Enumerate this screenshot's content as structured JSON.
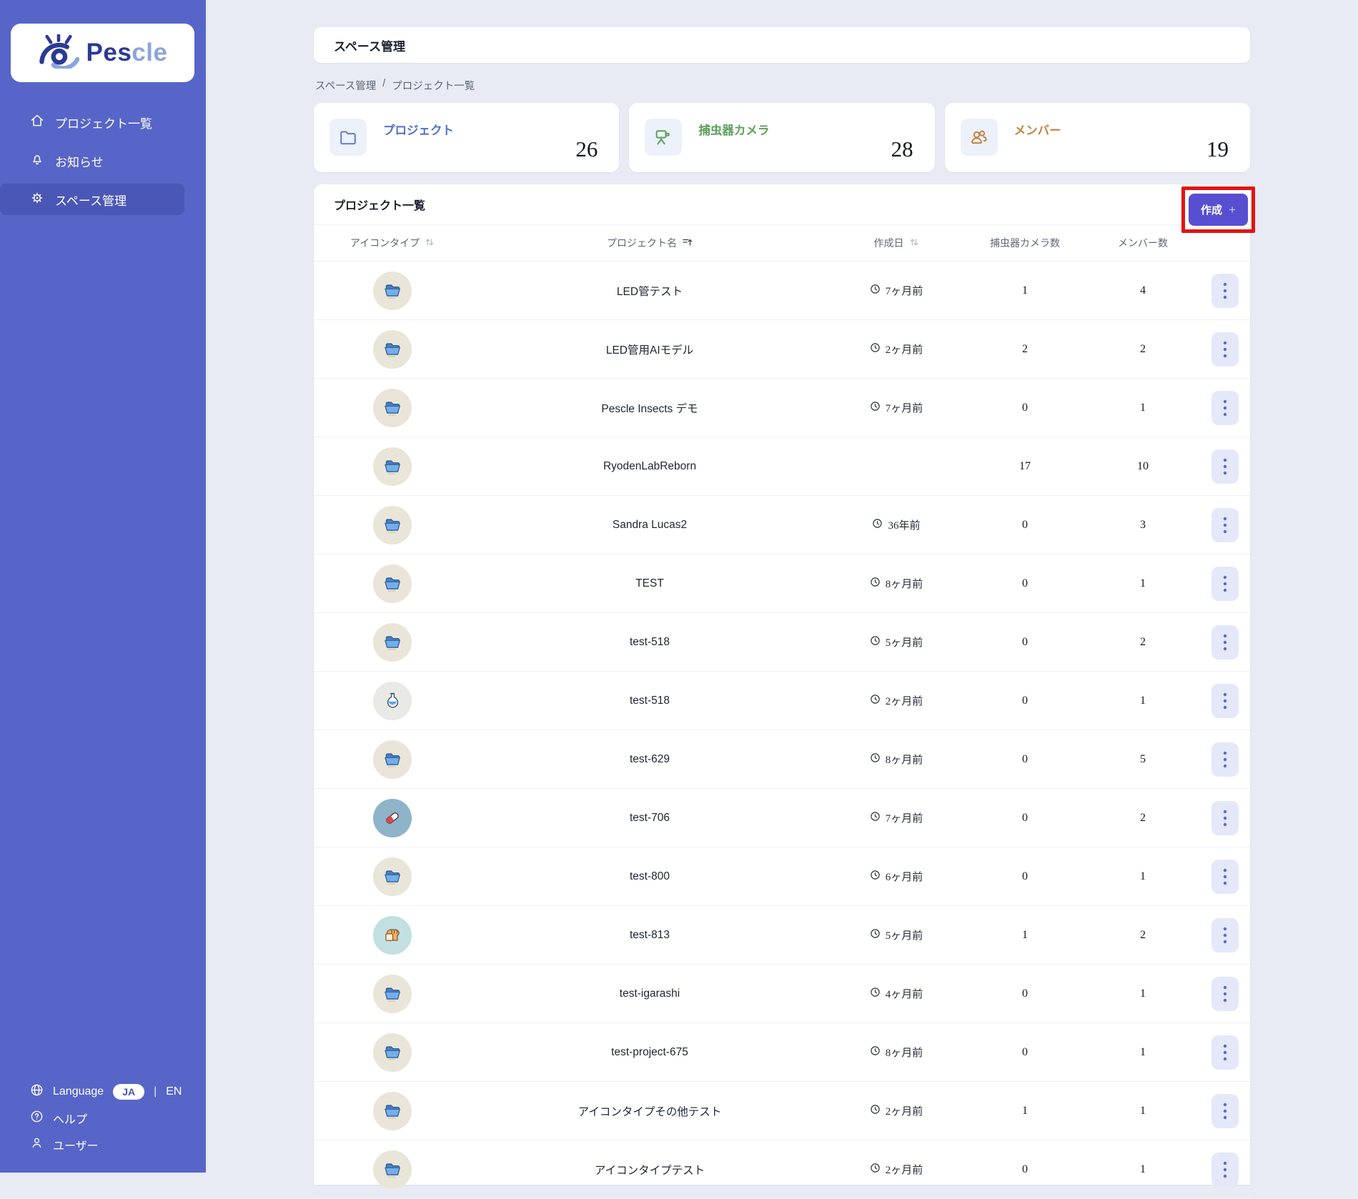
{
  "sidebar": {
    "brand_prefix": "Pes",
    "brand_suffix": "cle",
    "nav": [
      {
        "label": "プロジェクト一覧",
        "icon": "home-icon",
        "selected": false
      },
      {
        "label": "お知らせ",
        "icon": "bell-icon",
        "selected": false
      },
      {
        "label": "スペース管理",
        "icon": "gear-icon",
        "selected": true
      }
    ],
    "footer": {
      "language_label": "Language",
      "lang_ja": "JA",
      "divider": "|",
      "lang_en": "EN",
      "help_label": "ヘルプ",
      "user_label": "ユーザー"
    }
  },
  "header": {
    "title": "スペース管理"
  },
  "breadcrumb": {
    "item1": "スペース管理",
    "separator": "/",
    "item2": "プロジェクト一覧"
  },
  "stats": [
    {
      "label": "プロジェクト",
      "value": "26",
      "icon": "folder-icon",
      "color": "#4f71c8"
    },
    {
      "label": "捕虫器カメラ",
      "value": "28",
      "icon": "trap-camera-icon",
      "color": "#5ba05b"
    },
    {
      "label": "メンバー",
      "value": "19",
      "icon": "members-icon",
      "color": "#c4813e"
    }
  ],
  "table": {
    "title": "プロジェクト一覧",
    "create_label": "作成",
    "create_plus": "+",
    "columns": [
      {
        "label": "アイコンタイプ",
        "sort": "both"
      },
      {
        "label": "プロジェクト名",
        "sort": "asc"
      },
      {
        "label": "作成日",
        "sort": "both"
      },
      {
        "label": "捕虫器カメラ数",
        "sort": "none"
      },
      {
        "label": "メンバー数",
        "sort": "none"
      }
    ],
    "rows": [
      {
        "icon": "folder-open-icon",
        "circle_color": "#e9e5d9",
        "name": "LED管テスト",
        "created": "7ヶ月前",
        "cameras": "1",
        "members": "4"
      },
      {
        "icon": "folder-open-icon",
        "circle_color": "#e9e5d9",
        "name": "LED管用AIモデル",
        "created": "2ヶ月前",
        "cameras": "2",
        "members": "2"
      },
      {
        "icon": "folder-open-icon",
        "circle_color": "#e9e5d9",
        "name": "Pescle Insects デモ",
        "created": "7ヶ月前",
        "cameras": "0",
        "members": "1"
      },
      {
        "icon": "folder-open-icon",
        "circle_color": "#e9e5d9",
        "name": "RyodenLabReborn",
        "created": "",
        "cameras": "17",
        "members": "10"
      },
      {
        "icon": "folder-open-icon",
        "circle_color": "#e9e5d9",
        "name": "Sandra Lucas2",
        "created": "36年前",
        "cameras": "0",
        "members": "3"
      },
      {
        "icon": "folder-open-icon",
        "circle_color": "#e9e5d9",
        "name": "TEST",
        "created": "8ヶ月前",
        "cameras": "0",
        "members": "1"
      },
      {
        "icon": "folder-open-icon",
        "circle_color": "#e9e5d9",
        "name": "test-518",
        "created": "5ヶ月前",
        "cameras": "0",
        "members": "2"
      },
      {
        "icon": "flask-icon",
        "circle_color": "#e9e9e5",
        "name": "test-518",
        "created": "2ヶ月前",
        "cameras": "0",
        "members": "1"
      },
      {
        "icon": "folder-open-icon",
        "circle_color": "#e9e5d9",
        "name": "test-629",
        "created": "8ヶ月前",
        "cameras": "0",
        "members": "5"
      },
      {
        "icon": "pill-icon",
        "circle_color": "#8fb3c9",
        "name": "test-706",
        "created": "7ヶ月前",
        "cameras": "0",
        "members": "2"
      },
      {
        "icon": "folder-open-icon",
        "circle_color": "#e9e5d9",
        "name": "test-800",
        "created": "6ヶ月前",
        "cameras": "0",
        "members": "1"
      },
      {
        "icon": "bread-icon",
        "circle_color": "#c2dfe2",
        "name": "test-813",
        "created": "5ヶ月前",
        "cameras": "1",
        "members": "2"
      },
      {
        "icon": "folder-open-icon",
        "circle_color": "#e9e5d9",
        "name": "test-igarashi",
        "created": "4ヶ月前",
        "cameras": "0",
        "members": "1"
      },
      {
        "icon": "folder-open-icon",
        "circle_color": "#e9e5d9",
        "name": "test-project-675",
        "created": "8ヶ月前",
        "cameras": "0",
        "members": "1"
      },
      {
        "icon": "folder-open-icon",
        "circle_color": "#e9e5d9",
        "name": "アイコンタイプその他テスト",
        "created": "2ヶ月前",
        "cameras": "1",
        "members": "1"
      },
      {
        "icon": "folder-open-icon",
        "circle_color": "#e9e5d9",
        "name": "アイコンタイプテスト",
        "created": "2ヶ月前",
        "cameras": "0",
        "members": "1"
      }
    ]
  }
}
